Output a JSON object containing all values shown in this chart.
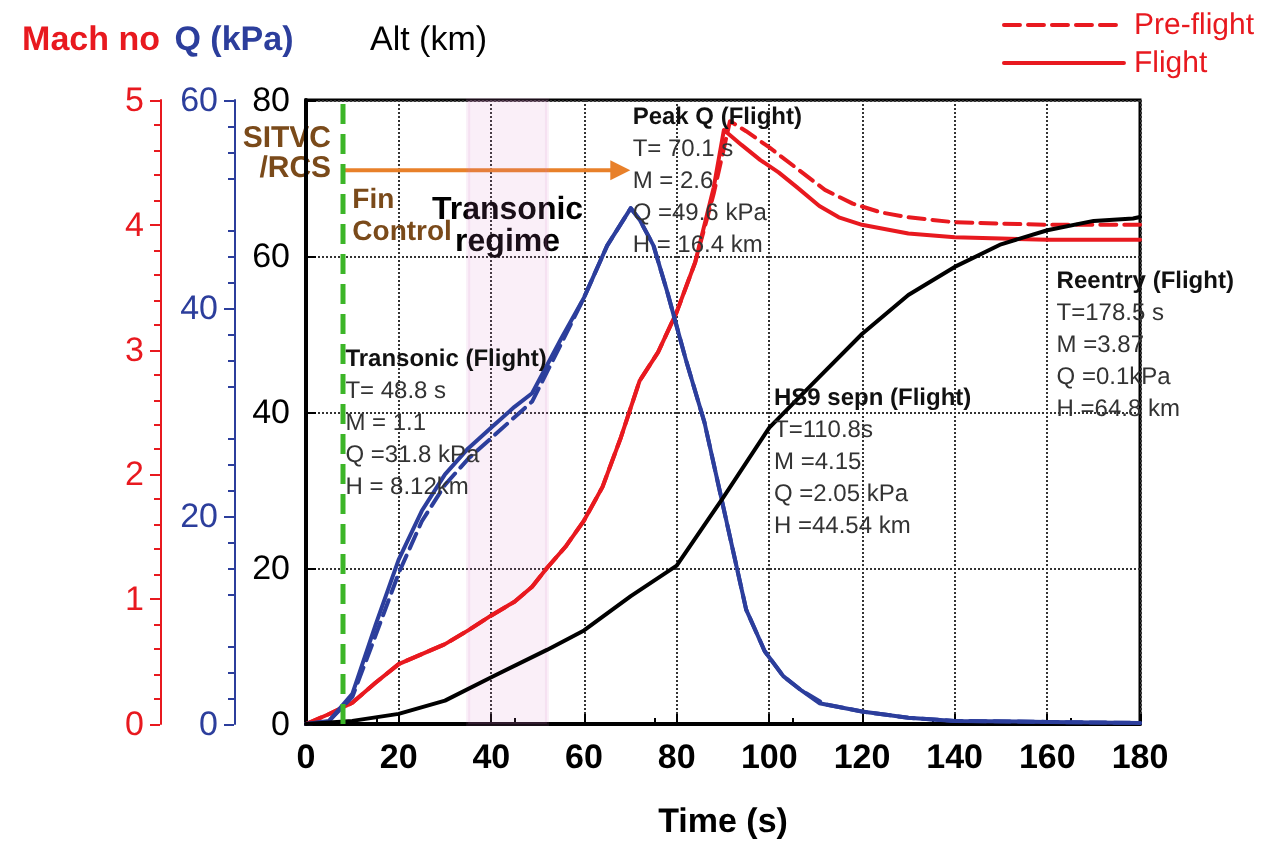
{
  "chart_data": {
    "type": "line",
    "xlabel": "Time (s)",
    "ylabel": "Alt (km)",
    "y2label": "Q (kPa)",
    "y3label": "Mach no",
    "xlim": [
      0,
      180
    ],
    "xticks": [
      0,
      20,
      40,
      60,
      80,
      100,
      120,
      140,
      160,
      180
    ],
    "ylim": [
      0,
      80
    ],
    "yticks": [
      0,
      20,
      40,
      60,
      80
    ],
    "y2lim": [
      0,
      60
    ],
    "y2ticks": [
      0,
      20,
      40,
      60
    ],
    "y3lim": [
      0,
      5
    ],
    "y3ticks": [
      0,
      1,
      2,
      3,
      4,
      5
    ],
    "grid": true,
    "legend": "top right",
    "marker": "none",
    "series": [
      {
        "name": "Pre-flight",
        "axis": "y3",
        "color": "#e8191f",
        "line_style": "dashed",
        "x": [
          0,
          5,
          10,
          15,
          20,
          25,
          30,
          35,
          40,
          45,
          48.8,
          52,
          56,
          60,
          64,
          68,
          72,
          76,
          80,
          84,
          88,
          91.5,
          95,
          100,
          106,
          112,
          118,
          124,
          130,
          140,
          160,
          180
        ],
        "values": [
          0,
          0.08,
          0.17,
          0.33,
          0.48,
          0.56,
          0.64,
          0.75,
          0.87,
          0.98,
          1.1,
          1.25,
          1.42,
          1.63,
          1.9,
          2.3,
          2.75,
          2.98,
          3.3,
          3.7,
          4.25,
          4.83,
          4.75,
          4.62,
          4.45,
          4.28,
          4.17,
          4.1,
          4.06,
          4.02,
          4.0,
          4.0
        ]
      },
      {
        "name": "Flight",
        "axis": "y3",
        "color": "#e8191f",
        "line_style": "solid",
        "x": [
          0,
          5,
          10,
          15,
          20,
          25,
          30,
          35,
          40,
          45,
          48.8,
          52,
          56,
          60,
          64,
          68,
          72,
          76,
          80,
          84,
          88,
          90.2,
          94,
          98,
          102,
          106,
          110.8,
          115,
          120,
          130,
          140,
          150,
          160,
          170,
          180
        ],
        "values": [
          0,
          0.08,
          0.17,
          0.33,
          0.48,
          0.56,
          0.64,
          0.75,
          0.87,
          0.98,
          1.1,
          1.25,
          1.42,
          1.63,
          1.9,
          2.3,
          2.75,
          2.98,
          3.3,
          3.7,
          4.3,
          4.76,
          4.64,
          4.52,
          4.42,
          4.3,
          4.15,
          4.06,
          4.0,
          3.93,
          3.9,
          3.89,
          3.88,
          3.88,
          3.88
        ]
      },
      {
        "axis": "y2",
        "color": "#2c3e9c",
        "line_style": "dashed",
        "x": [
          0,
          5,
          10,
          15,
          20,
          25,
          30,
          35,
          40,
          45,
          48.8,
          55,
          60,
          65,
          70.1,
          72,
          75,
          78,
          82,
          86,
          89,
          92,
          95,
          99,
          103,
          107,
          112,
          120,
          130,
          140,
          160,
          180
        ],
        "values": [
          0,
          0.3,
          2.6,
          8.5,
          14.5,
          19.5,
          23,
          25.5,
          27.5,
          29.5,
          31,
          36.5,
          41,
          46,
          49.6,
          48.5,
          46,
          41.5,
          35,
          29,
          23,
          17,
          11,
          7,
          4.6,
          3.2,
          1.9,
          1.2,
          0.6,
          0.3,
          0.2,
          0.1
        ]
      },
      {
        "axis": "y2",
        "color": "#2c3e9c",
        "line_style": "solid",
        "x": [
          0,
          5,
          10,
          15,
          20,
          25,
          30,
          35,
          40,
          45,
          48.8,
          55,
          60,
          65,
          70.1,
          72,
          75,
          78,
          82,
          86,
          89,
          92,
          95,
          99,
          103,
          107,
          110.8,
          120,
          130,
          140,
          160,
          180
        ],
        "values": [
          0,
          0.3,
          2.9,
          9.5,
          15.8,
          20.5,
          24,
          26.5,
          28.5,
          30.5,
          31.8,
          37,
          41,
          46,
          49.6,
          48.5,
          46,
          41.5,
          35,
          29,
          23,
          17,
          11,
          7,
          4.6,
          3.2,
          2,
          1.2,
          0.6,
          0.3,
          0.2,
          0.1
        ]
      },
      {
        "color": "#000000",
        "line_style": "solid",
        "x": [
          0,
          10,
          20,
          30,
          40,
          52,
          60,
          70.1,
          80,
          90,
          100,
          110.8,
          120,
          130,
          140,
          150,
          160,
          170,
          178.5,
          180
        ],
        "values": [
          0,
          0.4,
          1.3,
          3,
          6,
          9.5,
          12,
          16.4,
          20.3,
          29,
          38,
          44.5,
          50,
          55,
          58.6,
          61.5,
          63.3,
          64.5,
          64.8,
          65
        ]
      }
    ],
    "ref_lines": [
      {
        "axis": "x",
        "value": 8,
        "label": "SITVC\n/RCS",
        "color": "#3cb528",
        "line_style": "dashed"
      }
    ],
    "bands": [
      {
        "axis": "x",
        "from": 35,
        "to": 52,
        "label": "Transonic\nregime",
        "color": "#d47fc8"
      }
    ],
    "annotations": [
      "Fin Control",
      "Transonic (Flight)\nT= 48.8 s\nM = 1.1\nQ =31.8 kPa\nH = 8.12km",
      "Peak Q (Flight)\nT= 70.1 s\nM = 2.6\nQ =49.6 kPa\nH = 16.4 km",
      "HS9 sepn (Flight)\nT=110.8s\nM =4.15\nQ =2.05 kPa\nH =44.54 km",
      "Reentry (Flight)\nT=178.5 s\nM =3.87\nQ =0.1kPa\nH =64.8 km"
    ]
  }
}
